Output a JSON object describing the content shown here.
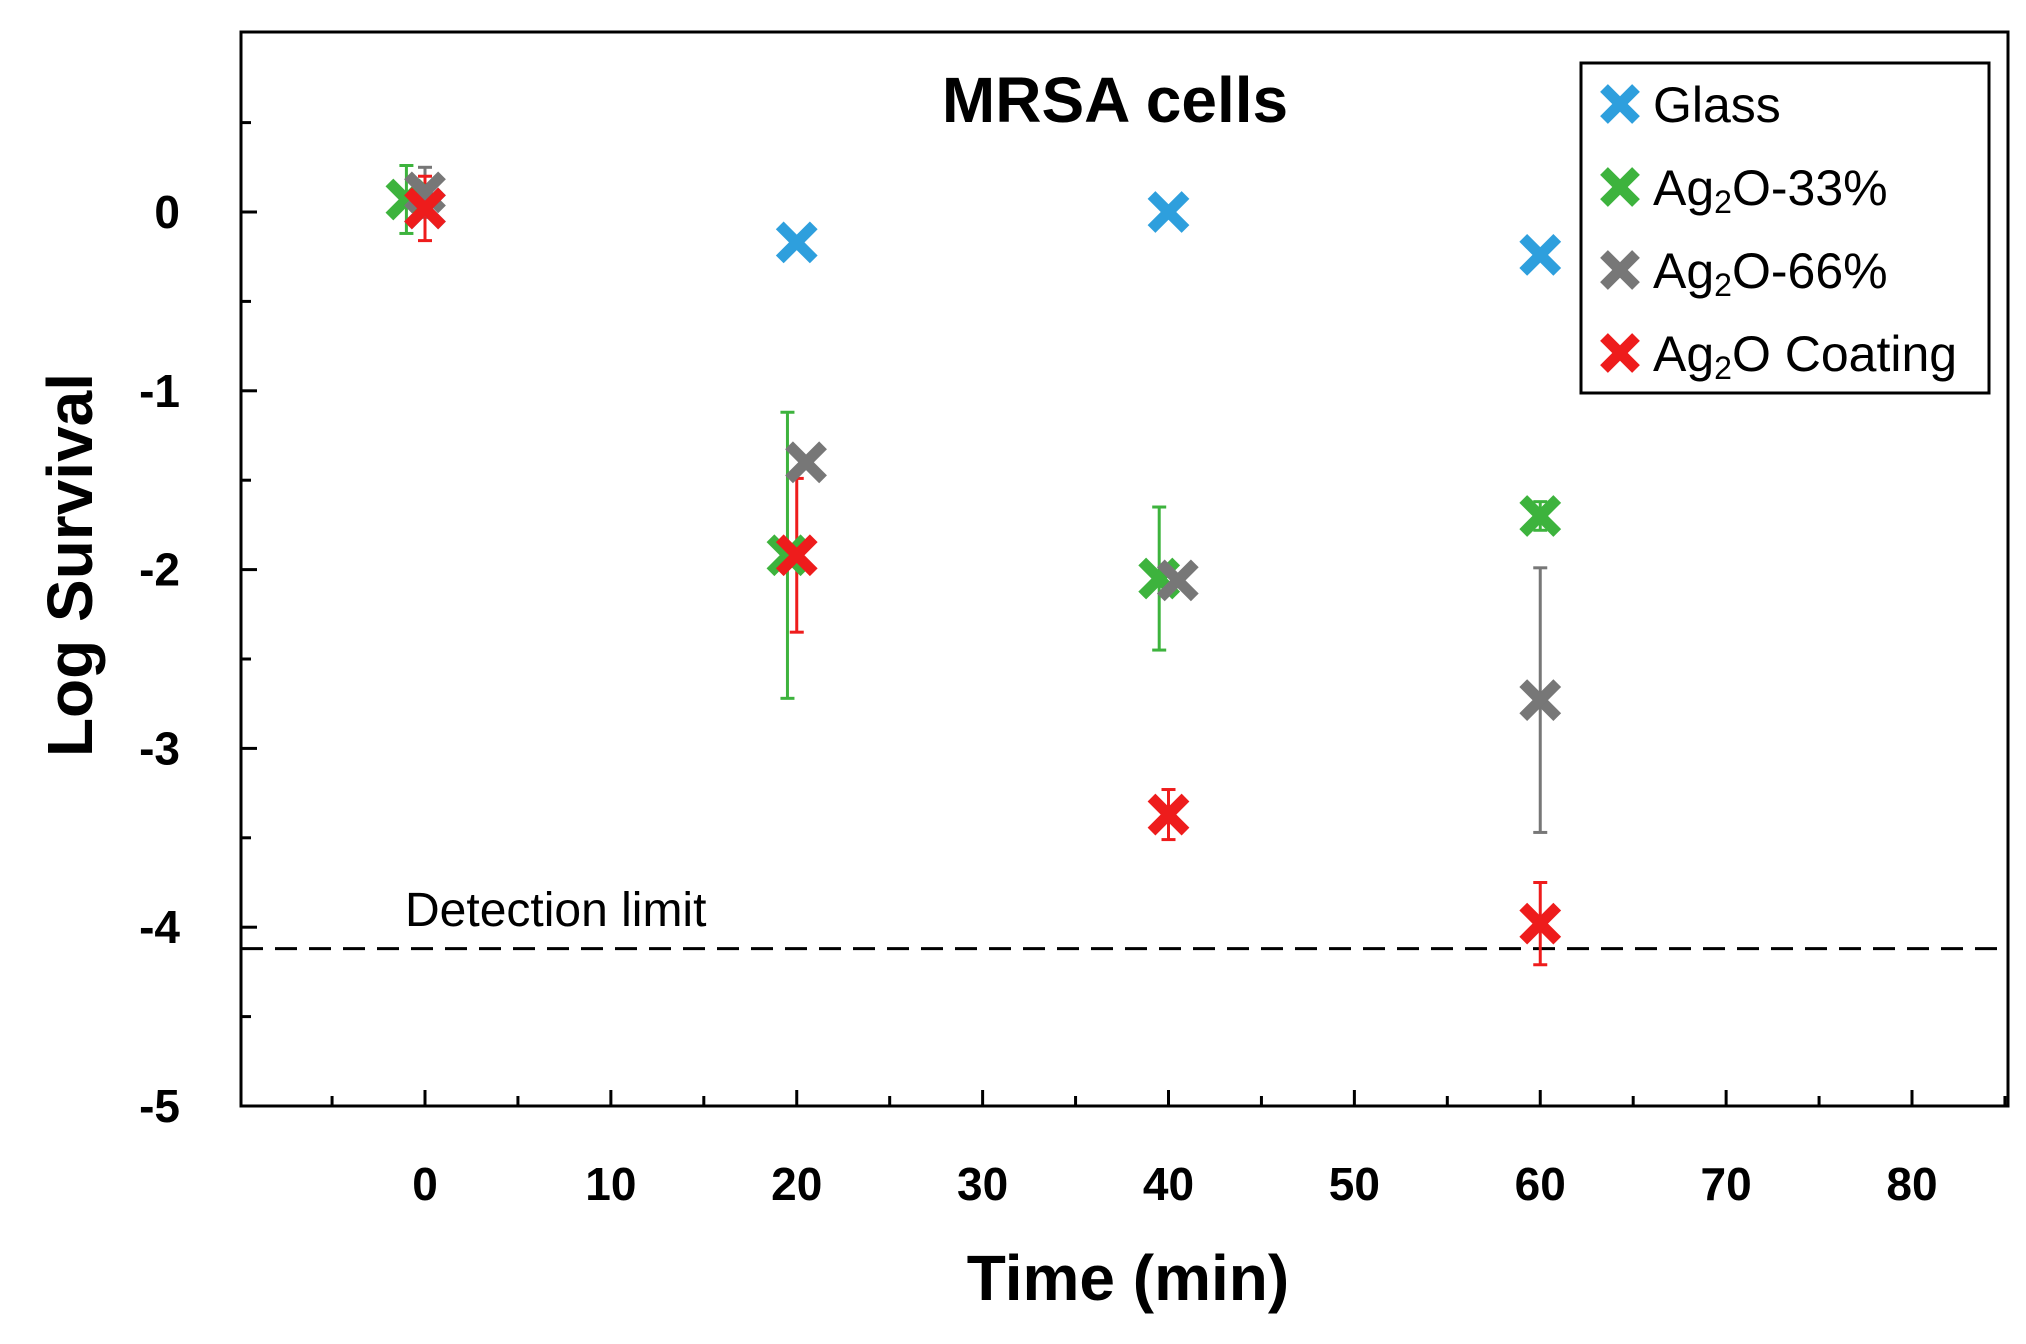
{
  "chart_data": {
    "type": "scatter",
    "title": "MRSA cells",
    "xlabel": "Time (min)",
    "ylabel": "Log Survival",
    "xlim": [
      -10,
      85
    ],
    "ylim": [
      -5,
      1
    ],
    "xticks": [
      0,
      10,
      20,
      30,
      40,
      50,
      60,
      70,
      80
    ],
    "yticks": [
      0,
      -1,
      -2,
      -3,
      -4,
      -5
    ],
    "legend_position": "top-right",
    "grid": false,
    "detection_limit": {
      "label": "Detection limit",
      "value": -4.12
    },
    "series": [
      {
        "name": "Glass",
        "color": "#2e9fdd",
        "points": [
          {
            "x": 0,
            "y": 0.02,
            "err": 0
          },
          {
            "x": 20,
            "y": -0.17,
            "err": 0
          },
          {
            "x": 40,
            "y": 0.0,
            "err": 0
          },
          {
            "x": 60,
            "y": -0.24,
            "err": 0
          }
        ]
      },
      {
        "name": "Ag₂O-33%",
        "legend_parts": {
          "base": "Ag",
          "sub": "2",
          "rest": "O-33%"
        },
        "color": "#3db33d",
        "points": [
          {
            "x": -1,
            "y": 0.07,
            "err": 0.19
          },
          {
            "x": 19.5,
            "y": -1.92,
            "err": 0.8
          },
          {
            "x": 39.5,
            "y": -2.05,
            "err": 0.4
          },
          {
            "x": 60,
            "y": -1.7,
            "err": 0.08
          }
        ]
      },
      {
        "name": "Ag₂O-66%",
        "legend_parts": {
          "base": "Ag",
          "sub": "2",
          "rest": "O-66%"
        },
        "color": "#777777",
        "points": [
          {
            "x": 0,
            "y": 0.11,
            "err": 0.14
          },
          {
            "x": 20.5,
            "y": -1.4,
            "err": 0
          },
          {
            "x": 40.5,
            "y": -2.06,
            "err": 0
          },
          {
            "x": 60,
            "y": -2.73,
            "err": 0.74
          }
        ]
      },
      {
        "name": "Ag₂O Coating",
        "legend_parts": {
          "base": "Ag",
          "sub": "2",
          "rest": "O Coating"
        },
        "color": "#ee1c1c",
        "points": [
          {
            "x": 0,
            "y": 0.02,
            "err": 0.18
          },
          {
            "x": 20,
            "y": -1.92,
            "err": 0.43
          },
          {
            "x": 40,
            "y": -3.37,
            "err": 0.14
          },
          {
            "x": 60,
            "y": -3.98,
            "err": 0.23
          }
        ]
      }
    ]
  }
}
